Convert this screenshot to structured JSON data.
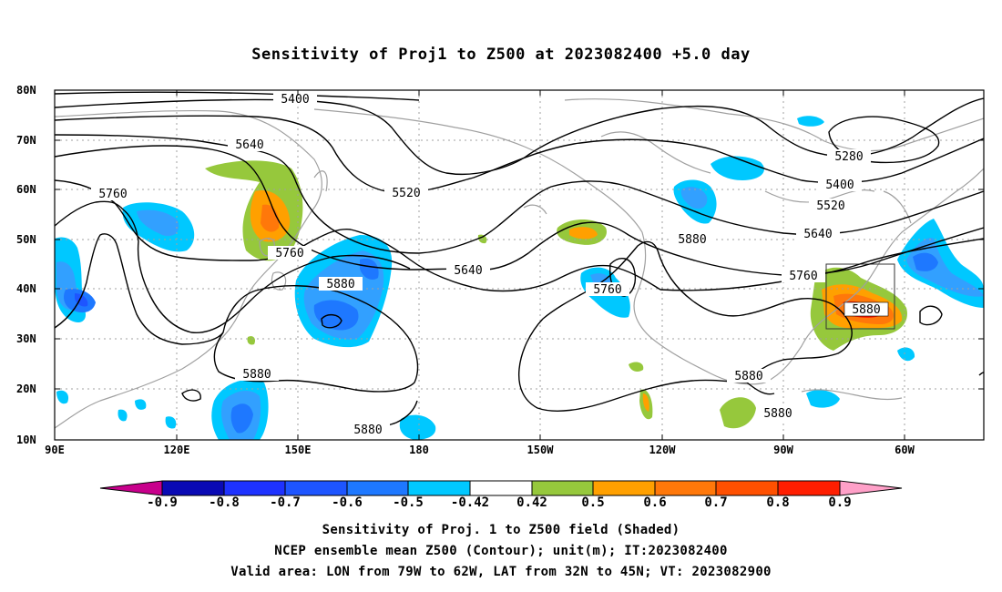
{
  "title": "Sensitivity of Proj1 to Z500 at 2023082400 +5.0 day",
  "lat_labels": [
    "80N",
    "70N",
    "60N",
    "50N",
    "40N",
    "30N",
    "20N",
    "10N"
  ],
  "lon_labels": [
    "90E",
    "120E",
    "150E",
    "180",
    "150W",
    "120W",
    "90W",
    "60W"
  ],
  "colorbar": {
    "labels": [
      "-0.9",
      "-0.8",
      "-0.7",
      "-0.6",
      "-0.5",
      "-0.42",
      "0.42",
      "0.5",
      "0.6",
      "0.7",
      "0.8",
      "0.9"
    ],
    "colors": [
      "#c8008c",
      "#0a0ab4",
      "#1e32ff",
      "#1e55ff",
      "#1e78ff",
      "#32a0ff",
      "#00c8ff",
      "#ffffff",
      "#96c83c",
      "#ffa000",
      "#ff780a",
      "#ff5000",
      "#ff1e00",
      "#ffa0c8"
    ]
  },
  "contours": [
    "5280",
    "5400",
    "5400",
    "5520",
    "5520",
    "5640",
    "5640",
    "5640",
    "5760",
    "5760",
    "5760",
    "5760",
    "5880",
    "5880",
    "5880",
    "5880",
    "5880",
    "5880",
    "5880"
  ],
  "notes": [
    "Sensitivity of Proj. 1 to Z500 field (Shaded)",
    "NCEP ensemble mean Z500 (Contour); unit(m); IT:2023082400",
    "Valid area: LON from 79W to 62W, LAT from 32N to 45N; VT: 2023082900"
  ],
  "colors": {
    "pos_strong": "#ff1e00",
    "pos_mid": "#ff780a",
    "pos_weak": "#96c83c",
    "neg_strong": "#1e55ff",
    "neg_weak": "#00c8ff",
    "coast": "#a0a0a0"
  }
}
